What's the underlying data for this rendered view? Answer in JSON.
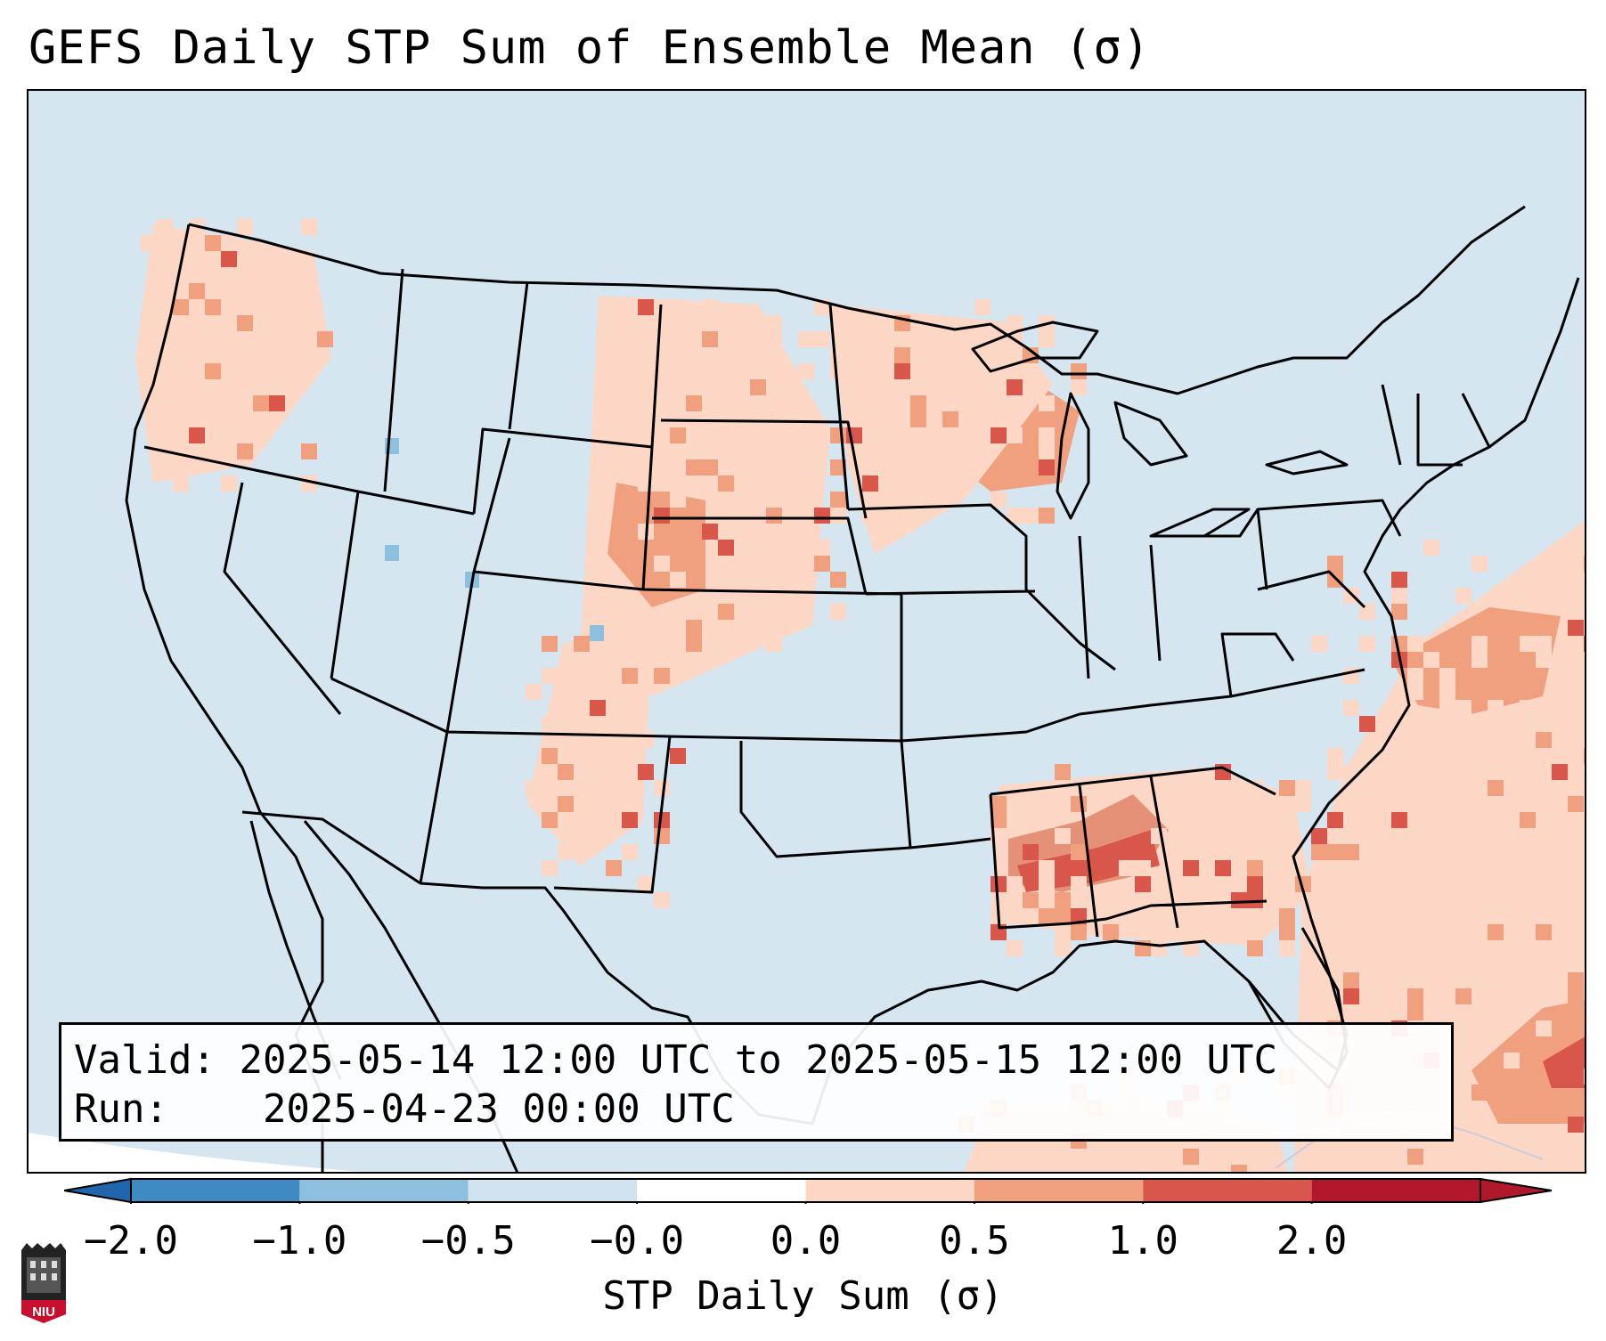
{
  "title": "GEFS Daily STP Sum of Ensemble Mean (σ)",
  "info": {
    "valid_label": "Valid:",
    "valid_value": "2025-05-14 12:00 UTC to 2025-05-15 12:00 UTC",
    "run_label": "Run:",
    "run_value": "2025-04-23 00:00 UTC"
  },
  "colorbar": {
    "label": "STP Daily Sum (σ)",
    "ticks": [
      "−2.0",
      "−1.0",
      "−0.5",
      "−0.0",
      "0.0",
      "0.5",
      "1.0",
      "2.0"
    ],
    "bin_colors": [
      "#3e8bc4",
      "#8dc0df",
      "#d0e3ef",
      "#ffffff",
      "#fdd7c6",
      "#f0a07e",
      "#d9574a",
      "#b2182b"
    ],
    "extend_colors": {
      "low": "#2166ac",
      "high": "#b2182b"
    }
  },
  "logo": {
    "text": "NIU",
    "icon": "niu-logo-icon"
  },
  "colors": {
    "ocean_background": "#d6e6f0",
    "light_red": "#fdd7c6",
    "medium_red": "#f0a07e",
    "dark_red": "#d9574a",
    "deep_red": "#b2182b",
    "light_blue": "#8dc0df"
  }
}
